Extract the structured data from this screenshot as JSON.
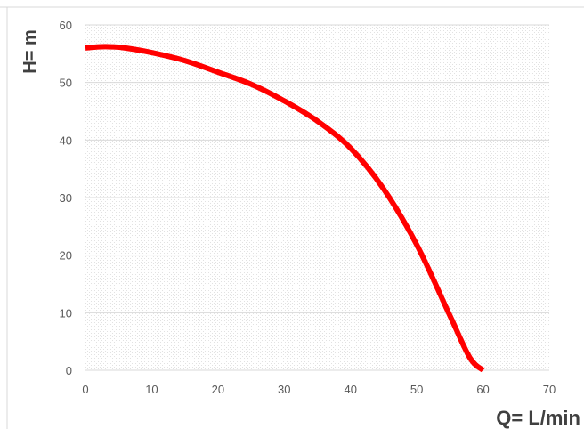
{
  "chart_data": {
    "type": "line",
    "title": "",
    "xlabel": "Q= L/min",
    "ylabel": "H= m",
    "xlim": [
      0,
      70
    ],
    "ylim": [
      0,
      60
    ],
    "x_ticks": [
      0,
      10,
      20,
      30,
      40,
      50,
      60,
      70
    ],
    "y_ticks": [
      0,
      10,
      20,
      30,
      40,
      50,
      60
    ],
    "grid": true,
    "legend": "none",
    "series": [
      {
        "color": "#ff0000",
        "x": [
          0,
          2,
          4,
          6,
          10,
          15,
          20,
          25,
          30,
          35,
          40,
          45,
          50,
          55,
          58,
          60
        ],
        "y": [
          56,
          56.2,
          56.2,
          56,
          55.2,
          53.8,
          51.8,
          49.7,
          46.8,
          43.3,
          38.6,
          31.5,
          21.8,
          9.5,
          2.2,
          0
        ]
      }
    ]
  }
}
